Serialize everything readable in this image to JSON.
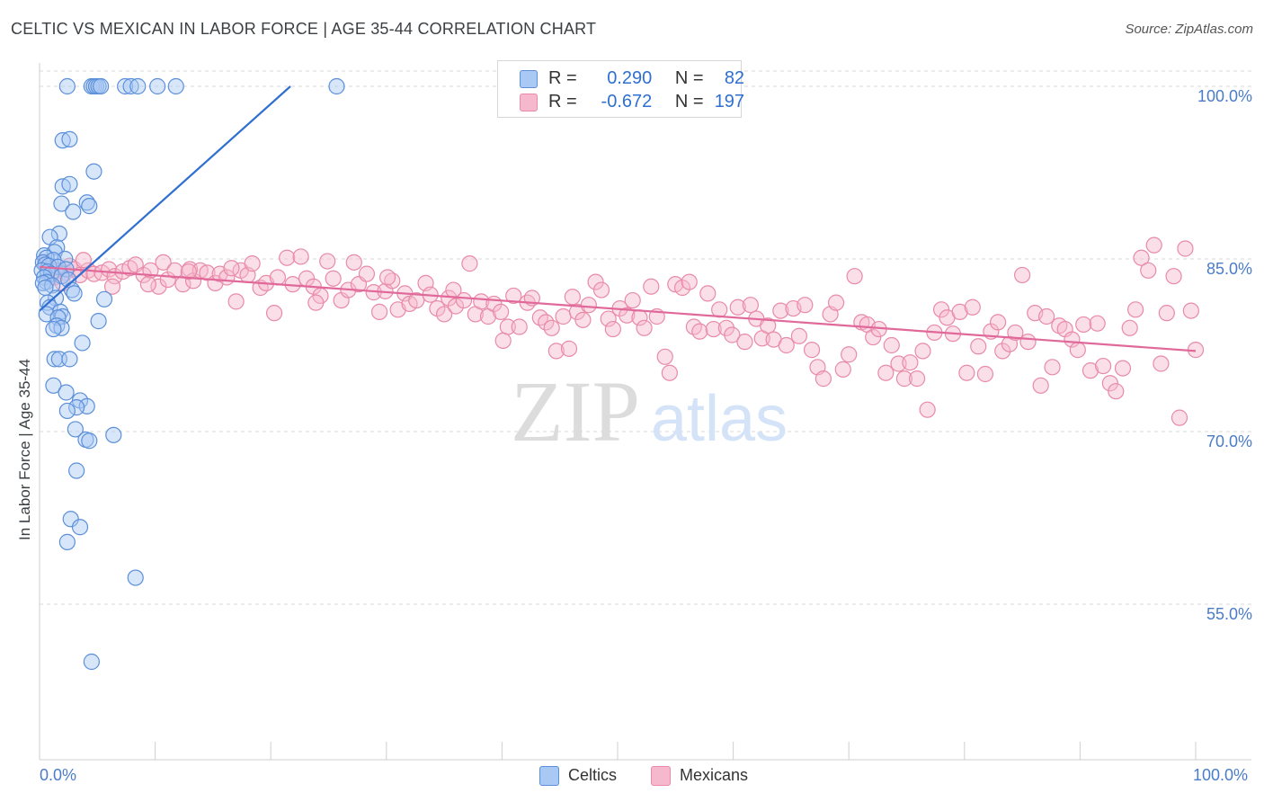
{
  "title": "CELTIC VS MEXICAN IN LABOR FORCE | AGE 35-44 CORRELATION CHART",
  "source": "Source: ZipAtlas.com",
  "watermark": {
    "zip": "ZIP",
    "atlas": "atlas"
  },
  "colors": {
    "celtic_fill": "#a9c8f4",
    "celtic_stroke": "#5b8fd9",
    "celtic_line": "#2f6fd1",
    "mexican_fill": "#f6b8cc",
    "mexican_stroke": "#e88aa8",
    "mexican_line": "#e0699a",
    "axis_label": "#4a7cc9",
    "grid": "#d9d9d9"
  },
  "legend": {
    "rows": [
      {
        "series": "celtic",
        "r_label": "R =",
        "r_value": "0.290",
        "n_label": "N =",
        "n_value": "82"
      },
      {
        "series": "mexican",
        "r_label": "R =",
        "r_value": "-0.672",
        "n_label": "N =",
        "n_value": "197"
      }
    ]
  },
  "bottom_legend": {
    "celtic": "Celtics",
    "mexican": "Mexicans"
  },
  "chart_data": {
    "type": "scatter",
    "title": "CELTIC VS MEXICAN IN LABOR FORCE | AGE 35-44 CORRELATION CHART",
    "xlabel": "",
    "ylabel": "In Labor Force | Age 35-44",
    "xlim": [
      0,
      100
    ],
    "ylim": [
      40,
      102
    ],
    "x_tick_labels": [
      "0.0%",
      "100.0%"
    ],
    "y_ticks": [
      55,
      70,
      85,
      100
    ],
    "y_tick_labels": [
      "55.0%",
      "70.0%",
      "85.0%",
      "100.0%"
    ],
    "grid": "horizontal dashed",
    "legend_position": "top-center",
    "series": [
      {
        "name": "Celtics",
        "r": 0.29,
        "n": 82,
        "trend": {
          "x": [
            0.0,
            21.7
          ],
          "y": [
            80.5,
            100.0
          ]
        },
        "points": [
          [
            2.4,
            100
          ],
          [
            4.5,
            100
          ],
          [
            4.7,
            100
          ],
          [
            4.9,
            100
          ],
          [
            5.1,
            100
          ],
          [
            5.3,
            100
          ],
          [
            7.4,
            100
          ],
          [
            7.9,
            100
          ],
          [
            8.5,
            100
          ],
          [
            10.2,
            100
          ],
          [
            11.8,
            100
          ],
          [
            25.7,
            100
          ],
          [
            2.0,
            95.3
          ],
          [
            2.6,
            95.4
          ],
          [
            4.7,
            92.6
          ],
          [
            2.0,
            91.3
          ],
          [
            2.6,
            91.5
          ],
          [
            1.9,
            89.8
          ],
          [
            4.1,
            89.9
          ],
          [
            4.3,
            89.6
          ],
          [
            2.9,
            89.1
          ],
          [
            1.7,
            87.2
          ],
          [
            0.9,
            86.9
          ],
          [
            1.5,
            86.0
          ],
          [
            1.3,
            85.6
          ],
          [
            0.4,
            85.3
          ],
          [
            0.6,
            85.1
          ],
          [
            2.2,
            85.0
          ],
          [
            1.2,
            84.9
          ],
          [
            0.3,
            84.7
          ],
          [
            0.5,
            84.5
          ],
          [
            0.8,
            84.4
          ],
          [
            1.6,
            84.3
          ],
          [
            2.3,
            84.1
          ],
          [
            0.2,
            84.0
          ],
          [
            0.7,
            83.9
          ],
          [
            1.0,
            83.7
          ],
          [
            1.9,
            83.5
          ],
          [
            0.4,
            83.4
          ],
          [
            2.5,
            83.2
          ],
          [
            0.6,
            83.0
          ],
          [
            0.3,
            82.9
          ],
          [
            1.1,
            82.7
          ],
          [
            0.5,
            82.5
          ],
          [
            2.8,
            82.3
          ],
          [
            3.0,
            82.0
          ],
          [
            1.4,
            81.6
          ],
          [
            5.6,
            81.5
          ],
          [
            0.7,
            81.2
          ],
          [
            0.9,
            80.8
          ],
          [
            1.8,
            80.4
          ],
          [
            0.6,
            80.2
          ],
          [
            2.0,
            80.0
          ],
          [
            1.6,
            79.9
          ],
          [
            5.1,
            79.6
          ],
          [
            1.5,
            79.2
          ],
          [
            1.9,
            79.0
          ],
          [
            1.2,
            78.9
          ],
          [
            3.7,
            77.7
          ],
          [
            1.3,
            76.3
          ],
          [
            1.7,
            76.3
          ],
          [
            2.6,
            76.3
          ],
          [
            1.2,
            74.0
          ],
          [
            2.3,
            73.4
          ],
          [
            3.5,
            72.7
          ],
          [
            4.1,
            72.2
          ],
          [
            3.2,
            72.1
          ],
          [
            2.4,
            71.8
          ],
          [
            3.1,
            70.2
          ],
          [
            4.0,
            69.3
          ],
          [
            4.3,
            69.2
          ],
          [
            6.4,
            69.7
          ],
          [
            3.2,
            66.6
          ],
          [
            2.7,
            62.4
          ],
          [
            3.5,
            61.7
          ],
          [
            2.4,
            60.4
          ],
          [
            8.3,
            57.3
          ],
          [
            4.5,
            50.0
          ]
        ]
      },
      {
        "name": "Mexicans",
        "r": -0.672,
        "n": 197,
        "trend": {
          "x": [
            0.0,
            100.0
          ],
          "y": [
            84.3,
            77.0
          ]
        },
        "points": [
          [
            1.0,
            84.2
          ],
          [
            1.6,
            84.0
          ],
          [
            2.2,
            83.8
          ],
          [
            2.6,
            84.4
          ],
          [
            3.0,
            84.1
          ],
          [
            3.5,
            83.6
          ],
          [
            4.2,
            84.0
          ],
          [
            4.7,
            83.7
          ],
          [
            5.4,
            83.8
          ],
          [
            6.0,
            84.1
          ],
          [
            6.5,
            83.5
          ],
          [
            7.2,
            83.9
          ],
          [
            7.8,
            84.2
          ],
          [
            8.3,
            84.5
          ],
          [
            9.0,
            83.6
          ],
          [
            9.6,
            84.0
          ],
          [
            10.3,
            82.6
          ],
          [
            10.7,
            84.7
          ],
          [
            11.1,
            83.2
          ],
          [
            11.7,
            84.0
          ],
          [
            12.4,
            82.8
          ],
          [
            13.0,
            84.1
          ],
          [
            13.3,
            83.1
          ],
          [
            13.9,
            84.0
          ],
          [
            14.5,
            83.8
          ],
          [
            15.2,
            82.9
          ],
          [
            15.6,
            83.7
          ],
          [
            16.2,
            83.4
          ],
          [
            17.0,
            81.3
          ],
          [
            17.4,
            84.0
          ],
          [
            18.0,
            83.6
          ],
          [
            18.4,
            84.6
          ],
          [
            19.1,
            82.5
          ],
          [
            19.6,
            82.9
          ],
          [
            20.3,
            80.3
          ],
          [
            20.6,
            83.4
          ],
          [
            21.4,
            85.1
          ],
          [
            21.9,
            82.8
          ],
          [
            22.6,
            85.2
          ],
          [
            23.1,
            83.3
          ],
          [
            23.7,
            82.6
          ],
          [
            24.3,
            81.8
          ],
          [
            24.9,
            84.8
          ],
          [
            25.4,
            83.3
          ],
          [
            26.1,
            81.4
          ],
          [
            26.7,
            82.3
          ],
          [
            27.2,
            84.7
          ],
          [
            27.6,
            82.8
          ],
          [
            28.3,
            83.7
          ],
          [
            28.9,
            82.1
          ],
          [
            29.4,
            80.4
          ],
          [
            29.9,
            82.2
          ],
          [
            30.5,
            83.1
          ],
          [
            31.0,
            80.6
          ],
          [
            31.6,
            82.0
          ],
          [
            32.0,
            81.1
          ],
          [
            32.6,
            81.4
          ],
          [
            33.4,
            82.9
          ],
          [
            33.8,
            81.9
          ],
          [
            34.4,
            80.7
          ],
          [
            35.0,
            80.2
          ],
          [
            35.4,
            81.6
          ],
          [
            36.0,
            80.9
          ],
          [
            36.7,
            81.4
          ],
          [
            37.2,
            84.6
          ],
          [
            37.7,
            80.2
          ],
          [
            38.2,
            81.3
          ],
          [
            38.8,
            80.0
          ],
          [
            39.3,
            81.1
          ],
          [
            39.9,
            80.4
          ],
          [
            40.5,
            79.1
          ],
          [
            41.0,
            81.8
          ],
          [
            41.5,
            79.1
          ],
          [
            42.2,
            81.2
          ],
          [
            42.6,
            81.6
          ],
          [
            43.3,
            79.9
          ],
          [
            43.8,
            79.5
          ],
          [
            44.3,
            79.0
          ],
          [
            44.7,
            77.0
          ],
          [
            45.3,
            80.0
          ],
          [
            46.1,
            81.7
          ],
          [
            46.5,
            80.4
          ],
          [
            47.0,
            79.7
          ],
          [
            47.5,
            81.0
          ],
          [
            48.1,
            83.0
          ],
          [
            48.6,
            82.3
          ],
          [
            49.2,
            79.8
          ],
          [
            49.6,
            78.9
          ],
          [
            50.2,
            80.7
          ],
          [
            50.8,
            80.1
          ],
          [
            51.3,
            81.4
          ],
          [
            51.9,
            79.9
          ],
          [
            52.3,
            79.0
          ],
          [
            52.9,
            82.6
          ],
          [
            53.4,
            80.0
          ],
          [
            54.1,
            76.5
          ],
          [
            54.5,
            75.1
          ],
          [
            55.0,
            82.8
          ],
          [
            55.6,
            82.5
          ],
          [
            56.2,
            83.0
          ],
          [
            56.6,
            79.1
          ],
          [
            57.1,
            78.7
          ],
          [
            57.8,
            82.0
          ],
          [
            58.3,
            78.9
          ],
          [
            58.8,
            80.6
          ],
          [
            59.4,
            79.0
          ],
          [
            59.9,
            78.4
          ],
          [
            60.4,
            80.8
          ],
          [
            61.0,
            77.8
          ],
          [
            61.5,
            81.0
          ],
          [
            62.0,
            79.8
          ],
          [
            62.5,
            78.1
          ],
          [
            63.0,
            79.2
          ],
          [
            63.5,
            78.0
          ],
          [
            64.1,
            80.5
          ],
          [
            64.6,
            77.5
          ],
          [
            65.2,
            80.7
          ],
          [
            65.7,
            78.3
          ],
          [
            66.2,
            81.0
          ],
          [
            66.8,
            77.1
          ],
          [
            67.3,
            75.6
          ],
          [
            67.8,
            74.6
          ],
          [
            68.4,
            80.2
          ],
          [
            68.9,
            81.2
          ],
          [
            69.5,
            75.4
          ],
          [
            70.0,
            76.7
          ],
          [
            70.5,
            83.5
          ],
          [
            71.1,
            79.5
          ],
          [
            71.6,
            79.3
          ],
          [
            72.1,
            78.2
          ],
          [
            72.6,
            78.9
          ],
          [
            73.2,
            75.1
          ],
          [
            73.7,
            77.5
          ],
          [
            74.3,
            75.9
          ],
          [
            74.8,
            74.6
          ],
          [
            75.3,
            76.0
          ],
          [
            75.9,
            74.6
          ],
          [
            76.4,
            77.0
          ],
          [
            76.8,
            71.9
          ],
          [
            77.4,
            78.6
          ],
          [
            78.0,
            80.6
          ],
          [
            78.5,
            79.9
          ],
          [
            79.0,
            78.5
          ],
          [
            79.6,
            80.4
          ],
          [
            80.2,
            75.1
          ],
          [
            80.7,
            80.8
          ],
          [
            81.2,
            77.4
          ],
          [
            81.8,
            75.0
          ],
          [
            82.3,
            78.7
          ],
          [
            82.9,
            79.5
          ],
          [
            83.3,
            77.0
          ],
          [
            83.9,
            77.6
          ],
          [
            84.4,
            78.6
          ],
          [
            85.0,
            83.6
          ],
          [
            85.5,
            77.8
          ],
          [
            86.1,
            80.3
          ],
          [
            86.6,
            74.0
          ],
          [
            87.1,
            80.0
          ],
          [
            87.6,
            75.6
          ],
          [
            88.2,
            79.2
          ],
          [
            88.7,
            78.9
          ],
          [
            89.3,
            78.0
          ],
          [
            89.8,
            77.1
          ],
          [
            90.3,
            79.3
          ],
          [
            90.9,
            75.3
          ],
          [
            91.5,
            79.4
          ],
          [
            92.0,
            75.7
          ],
          [
            92.6,
            74.2
          ],
          [
            93.1,
            73.5
          ],
          [
            93.7,
            75.5
          ],
          [
            94.3,
            79.0
          ],
          [
            94.8,
            80.6
          ],
          [
            95.3,
            85.1
          ],
          [
            95.9,
            84.0
          ],
          [
            96.4,
            86.2
          ],
          [
            97.0,
            75.9
          ],
          [
            97.5,
            80.3
          ],
          [
            98.1,
            83.5
          ],
          [
            98.6,
            71.2
          ],
          [
            99.1,
            85.9
          ],
          [
            99.6,
            80.5
          ],
          [
            100.0,
            77.1
          ],
          [
            0.5,
            84.7
          ],
          [
            1.3,
            83.4
          ],
          [
            2.0,
            82.9
          ],
          [
            3.8,
            84.9
          ],
          [
            6.3,
            82.6
          ],
          [
            9.4,
            82.8
          ],
          [
            12.9,
            83.9
          ],
          [
            16.6,
            84.2
          ],
          [
            23.9,
            81.2
          ],
          [
            30.1,
            83.4
          ],
          [
            35.8,
            82.3
          ],
          [
            40.1,
            77.9
          ],
          [
            45.8,
            77.2
          ]
        ]
      }
    ]
  }
}
